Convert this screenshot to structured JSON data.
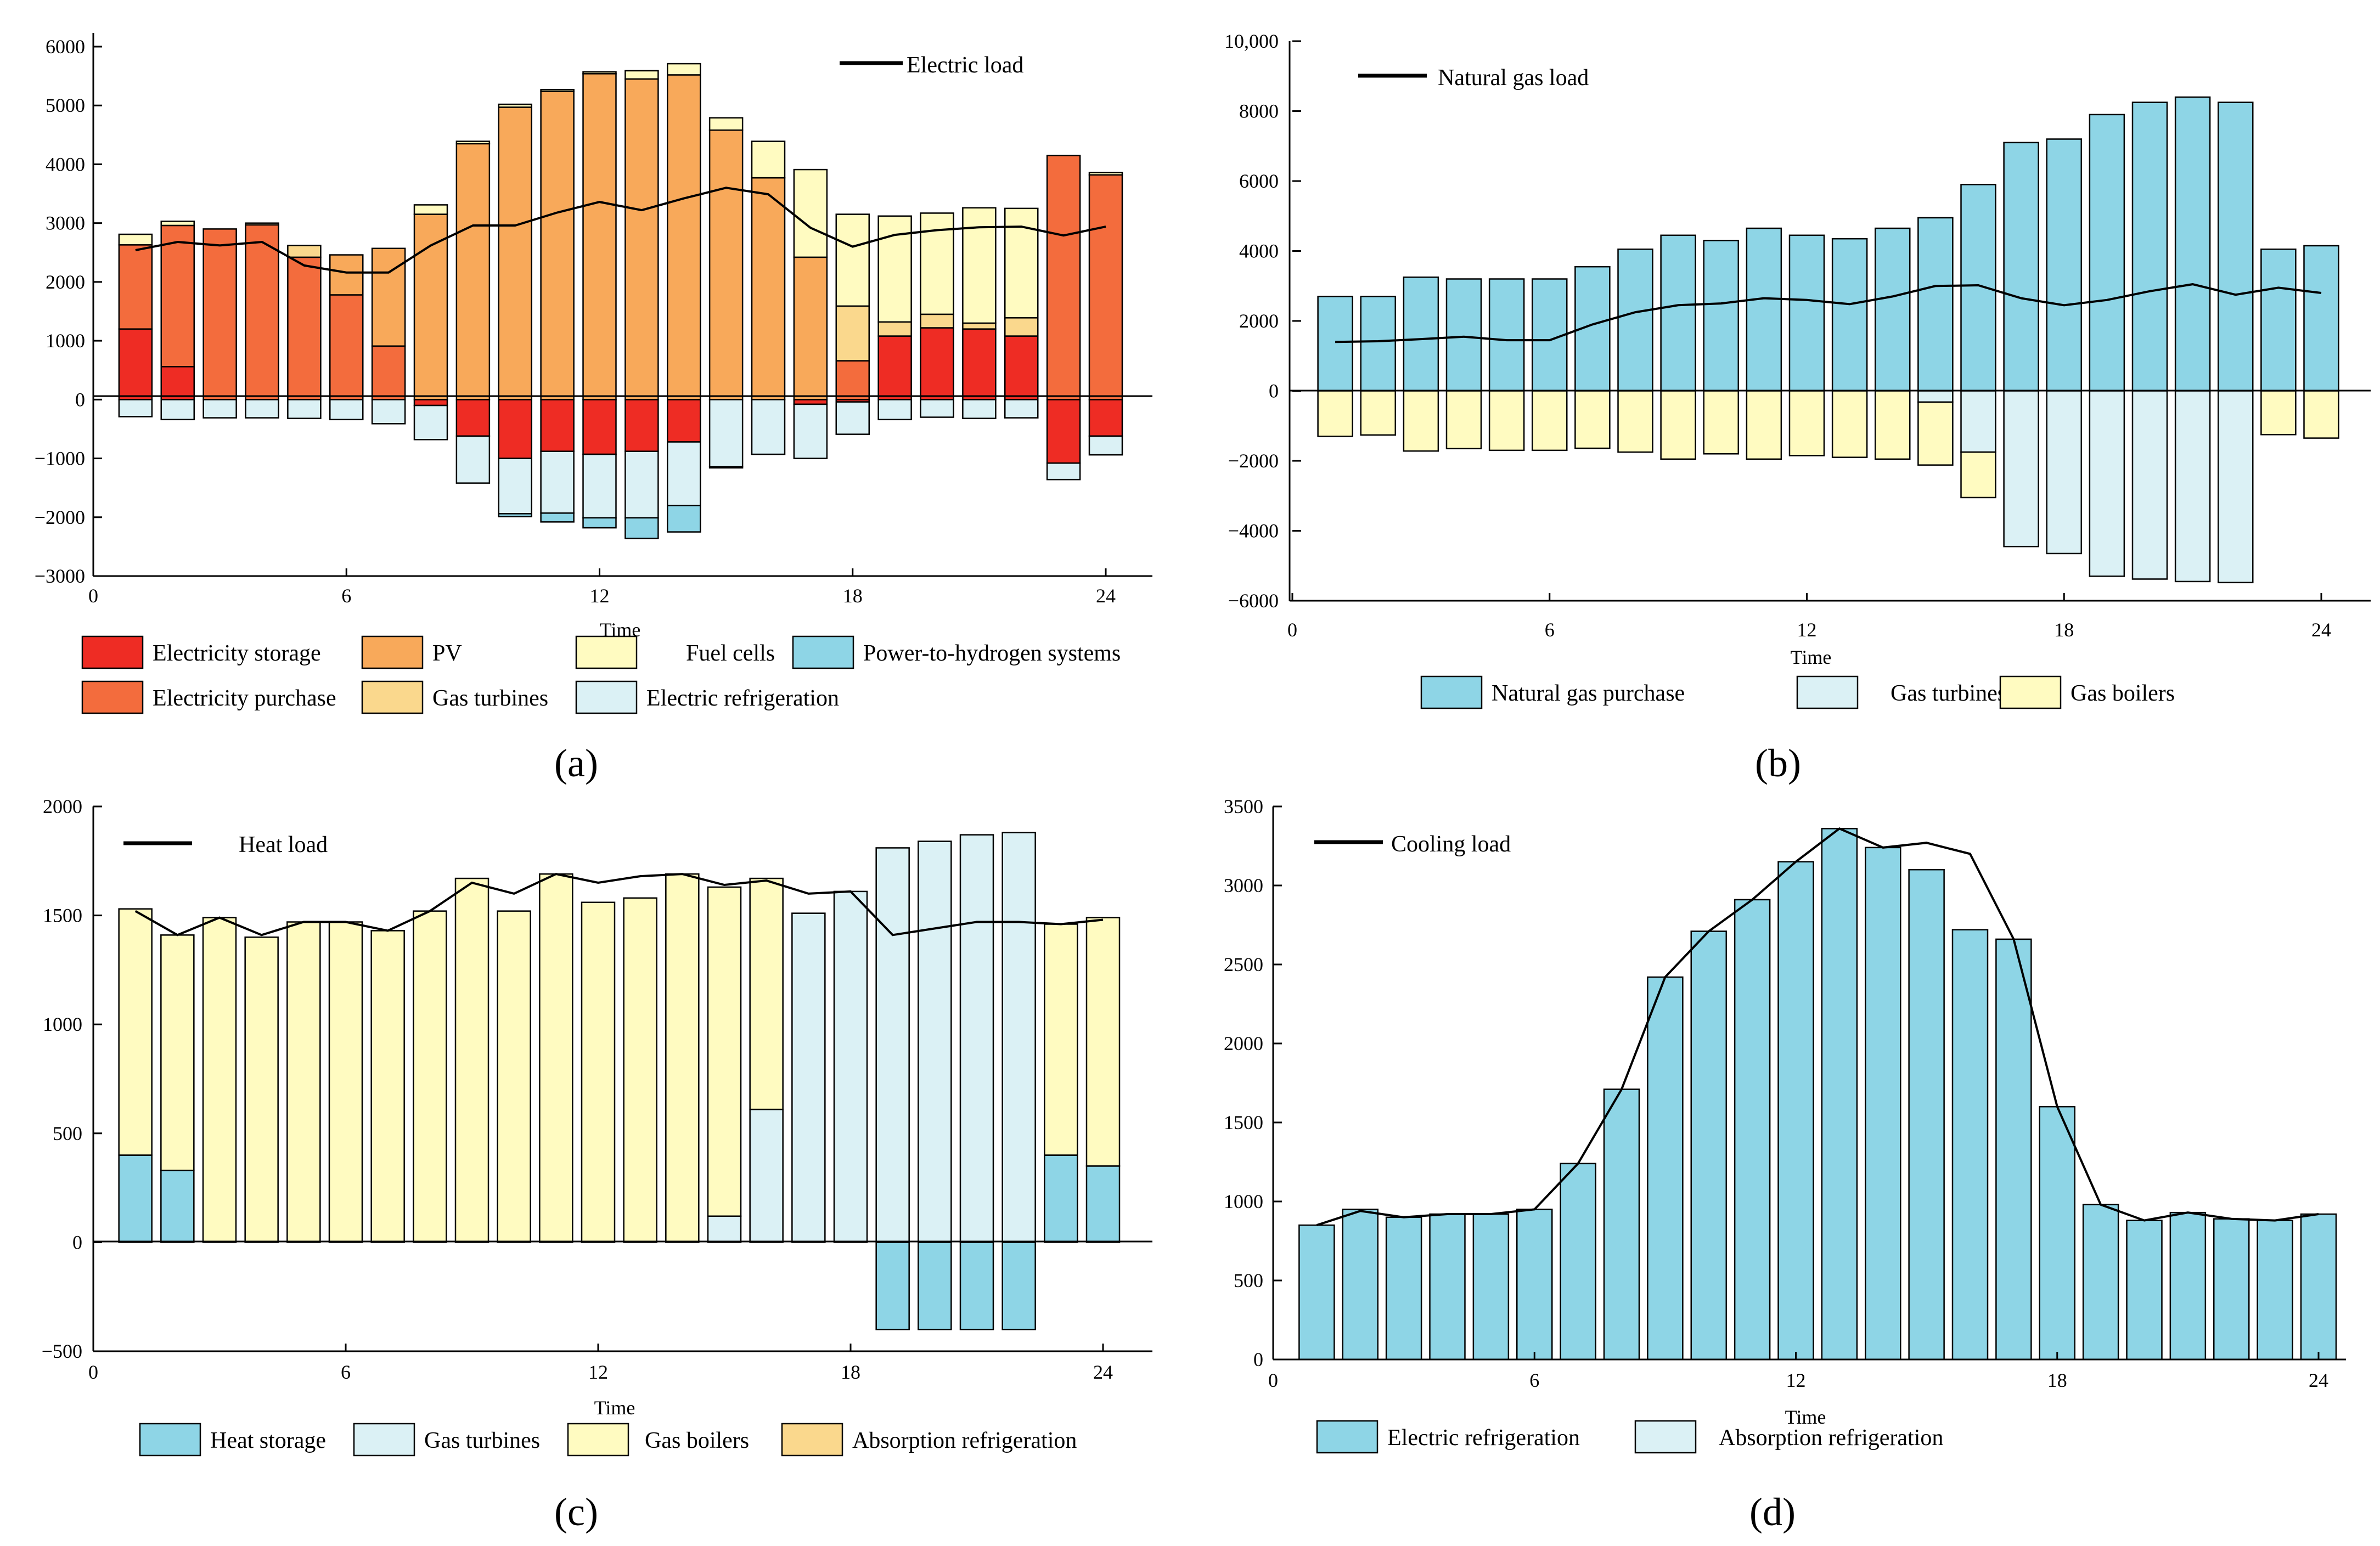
{
  "colors": {
    "electricity_storage": "#EE2C24",
    "electricity_purchase": "#F36C3D",
    "pv": "#F8A95A",
    "gas_turbines_a": "#FAD88D",
    "fuel_cells": "#FFFBC1",
    "electric_refrigeration": "#DBF1F5",
    "p2h": "#8ED5E6",
    "natural_gas_purchase": "#8ED5E6",
    "gas_turbines": "#DBF1F5",
    "gas_boilers": "#FFFBC1",
    "heat_storage": "#8ED5E6",
    "absorption_refrigeration": "#FAD88D",
    "line": "#000000"
  },
  "chart_data": [
    {
      "id": "a",
      "caption": "(a)",
      "type": "stacked-bar-line",
      "xlabel": "Time",
      "xticks": [
        "0",
        "6",
        "12",
        "18",
        "24"
      ],
      "ylim": [
        -3000,
        6000
      ],
      "yticks": [
        "6000",
        "5000",
        "4000",
        "3000",
        "2000",
        "1000",
        "0",
        "−1000",
        "−2000",
        "−3000"
      ],
      "x": [
        1,
        2,
        3,
        4,
        5,
        6,
        7,
        8,
        9,
        10,
        11,
        12,
        13,
        14,
        15,
        16,
        17,
        18,
        19,
        20,
        21,
        22,
        23,
        24
      ],
      "series": [
        {
          "name": "Electricity storage",
          "color_key": "electricity_storage",
          "values": [
            1200,
            560,
            0,
            0,
            0,
            0,
            0,
            -100,
            -620,
            -1000,
            -880,
            -930,
            -880,
            -720,
            0,
            0,
            -80,
            -40,
            1080,
            1220,
            1200,
            1080,
            -1080,
            -620
          ]
        },
        {
          "name": "Electricity purchase",
          "color_key": "electricity_purchase",
          "values": [
            1430,
            2400,
            2900,
            2970,
            2420,
            1780,
            910,
            0,
            0,
            0,
            0,
            0,
            0,
            0,
            0,
            0,
            0,
            660,
            0,
            0,
            0,
            0,
            4150,
            3820
          ]
        },
        {
          "name": "PV",
          "color_key": "pv",
          "values": [
            0,
            0,
            0,
            0,
            0,
            680,
            1660,
            3150,
            4350,
            4970,
            5240,
            5540,
            5450,
            5520,
            4580,
            3770,
            2420,
            0,
            0,
            0,
            0,
            0,
            0,
            0
          ]
        },
        {
          "name": "Gas turbines",
          "color_key": "gas_turbines_a",
          "values": [
            0,
            0,
            0,
            0,
            200,
            0,
            0,
            0,
            0,
            0,
            0,
            0,
            0,
            0,
            0,
            0,
            0,
            930,
            240,
            230,
            100,
            310,
            0,
            0
          ]
        },
        {
          "name": "Fuel cells",
          "color_key": "fuel_cells",
          "values": [
            180,
            70,
            0,
            30,
            0,
            0,
            0,
            160,
            40,
            50,
            30,
            30,
            140,
            190,
            210,
            620,
            1490,
            1560,
            1800,
            1720,
            1960,
            1860,
            0,
            40
          ]
        },
        {
          "name": "Electric refrigeration",
          "color_key": "electric_refrigeration",
          "values": [
            -290,
            -340,
            -310,
            -310,
            -320,
            -340,
            -410,
            -580,
            -800,
            -940,
            -1050,
            -1080,
            -1130,
            -1080,
            -1140,
            -930,
            -920,
            -550,
            -340,
            -300,
            -320,
            -310,
            -280,
            -320
          ]
        },
        {
          "name": "Power-to-hydrogen systems",
          "color_key": "p2h",
          "values": [
            0,
            0,
            0,
            0,
            0,
            0,
            0,
            0,
            0,
            -50,
            -150,
            -170,
            -350,
            -450,
            -20,
            0,
            0,
            0,
            0,
            0,
            0,
            0,
            0,
            0
          ]
        }
      ],
      "line": {
        "name": "Electric load",
        "values": [
          2540,
          2680,
          2620,
          2680,
          2280,
          2160,
          2160,
          2620,
          2960,
          2960,
          3180,
          3360,
          3220,
          3420,
          3600,
          3490,
          2920,
          2600,
          2800,
          2880,
          2930,
          2940,
          2790,
          2940
        ]
      },
      "legend": [
        "Electricity storage",
        "PV",
        "Fuel cells",
        "Power-to-hydrogen systems",
        "Electricity purchase",
        "Gas  turbines",
        "Electric  refrigeration"
      ]
    },
    {
      "id": "b",
      "caption": "(b)",
      "type": "stacked-bar-line",
      "xlabel": "Time",
      "xticks": [
        "0",
        "6",
        "12",
        "18",
        "24"
      ],
      "ylim": [
        -6000,
        10000
      ],
      "yticks": [
        "10,000",
        "8000",
        "6000",
        "4000",
        "2000",
        "0",
        "−2000",
        "−4000",
        "−6000"
      ],
      "x": [
        1,
        2,
        3,
        4,
        5,
        6,
        7,
        8,
        9,
        10,
        11,
        12,
        13,
        14,
        15,
        16,
        17,
        18,
        19,
        20,
        21,
        22,
        23,
        24
      ],
      "series": [
        {
          "name": "Natural gas purchase",
          "color_key": "natural_gas_purchase",
          "values": [
            2700,
            2700,
            3250,
            3200,
            3200,
            3200,
            3550,
            4050,
            4450,
            4300,
            4650,
            4450,
            4350,
            4650,
            4950,
            5900,
            7100,
            7200,
            7900,
            8250,
            8400,
            8250,
            4050,
            4150
          ]
        },
        {
          "name": "Gas  turbines",
          "color_key": "gas_turbines",
          "values": [
            0,
            0,
            0,
            0,
            0,
            0,
            0,
            0,
            0,
            0,
            0,
            0,
            0,
            0,
            -320,
            -1750,
            -4450,
            -4650,
            -5300,
            -5380,
            -5450,
            -5480,
            0,
            0
          ]
        },
        {
          "name": "Gas boilers",
          "color_key": "gas_boilers",
          "values": [
            -1300,
            -1260,
            -1720,
            -1650,
            -1700,
            -1700,
            -1640,
            -1750,
            -1950,
            -1800,
            -1950,
            -1850,
            -1900,
            -1950,
            -1800,
            -1300,
            0,
            0,
            0,
            0,
            0,
            0,
            -1250,
            -1350
          ]
        }
      ],
      "line": {
        "name": "Natural gas load",
        "values": [
          1400,
          1420,
          1480,
          1550,
          1450,
          1450,
          1900,
          2250,
          2450,
          2500,
          2650,
          2600,
          2480,
          2700,
          3000,
          3020,
          2650,
          2450,
          2600,
          2850,
          3050,
          2750,
          2950,
          2800
        ]
      },
      "legend": [
        "Natural gas purchase",
        "Gas  turbines",
        "Gas boilers"
      ]
    },
    {
      "id": "c",
      "caption": "(c)",
      "type": "stacked-bar-line",
      "xlabel": "Time",
      "xticks": [
        "0",
        "6",
        "12",
        "18",
        "24"
      ],
      "ylim": [
        -500,
        2000
      ],
      "yticks": [
        "2000",
        "1500",
        "1000",
        "500",
        "0",
        "−500"
      ],
      "x": [
        1,
        2,
        3,
        4,
        5,
        6,
        7,
        8,
        9,
        10,
        11,
        12,
        13,
        14,
        15,
        16,
        17,
        18,
        19,
        20,
        21,
        22,
        23,
        24
      ],
      "series": [
        {
          "name": "Heat storage",
          "color_key": "heat_storage",
          "values": [
            400,
            330,
            0,
            0,
            0,
            0,
            0,
            0,
            0,
            0,
            0,
            0,
            0,
            0,
            0,
            0,
            0,
            0,
            -400,
            -400,
            -400,
            -400,
            400,
            350
          ]
        },
        {
          "name": "Gas turbines",
          "color_key": "gas_turbines",
          "values": [
            0,
            0,
            0,
            0,
            0,
            0,
            0,
            0,
            0,
            0,
            0,
            0,
            0,
            0,
            120,
            610,
            1510,
            1610,
            1810,
            1840,
            1870,
            1880,
            0,
            0
          ]
        },
        {
          "name": "Gas boilers",
          "color_key": "gas_boilers",
          "values": [
            1130,
            1080,
            1490,
            1400,
            1470,
            1470,
            1430,
            1520,
            1670,
            1520,
            1690,
            1560,
            1580,
            1690,
            1510,
            1060,
            0,
            0,
            0,
            0,
            0,
            0,
            1060,
            1140
          ]
        }
      ],
      "line": {
        "name": "Heat load",
        "values": [
          1520,
          1410,
          1490,
          1410,
          1470,
          1470,
          1430,
          1520,
          1650,
          1600,
          1690,
          1650,
          1680,
          1690,
          1640,
          1660,
          1600,
          1610,
          1410,
          1440,
          1470,
          1470,
          1460,
          1480
        ]
      },
      "legend": [
        "Heat storage",
        "Gas turbines",
        "Gas boilers",
        "Absorption refrigeration"
      ],
      "legend_color_keys": [
        "heat_storage",
        "gas_turbines",
        "gas_boilers",
        "absorption_refrigeration"
      ]
    },
    {
      "id": "d",
      "caption": "(d)",
      "type": "stacked-bar-line",
      "xlabel": "Time",
      "xticks": [
        "0",
        "6",
        "12",
        "18",
        "24"
      ],
      "ylim": [
        0,
        3500
      ],
      "yticks": [
        "3500",
        "3000",
        "2500",
        "2000",
        "1500",
        "1000",
        "500",
        "0"
      ],
      "x": [
        1,
        2,
        3,
        4,
        5,
        6,
        7,
        8,
        9,
        10,
        11,
        12,
        13,
        14,
        15,
        16,
        17,
        18,
        19,
        20,
        21,
        22,
        23,
        24
      ],
      "series": [
        {
          "name": "Electric  refrigeration",
          "color_key": "heat_storage",
          "values": [
            850,
            950,
            900,
            920,
            920,
            950,
            1240,
            1710,
            2420,
            2710,
            2910,
            3150,
            3360,
            3240,
            3100,
            2720,
            2660,
            1600,
            980,
            880,
            930,
            890,
            880,
            920
          ]
        }
      ],
      "line": {
        "name": "Cooling load",
        "values": [
          850,
          940,
          900,
          920,
          920,
          950,
          1240,
          1710,
          2420,
          2710,
          2910,
          3150,
          3360,
          3240,
          3270,
          3200,
          2660,
          1600,
          980,
          880,
          930,
          890,
          880,
          920
        ]
      },
      "legend": [
        "Electric  refrigeration",
        "Absorption refrigeration"
      ],
      "legend_color_keys": [
        "heat_storage",
        "gas_turbines"
      ]
    }
  ]
}
